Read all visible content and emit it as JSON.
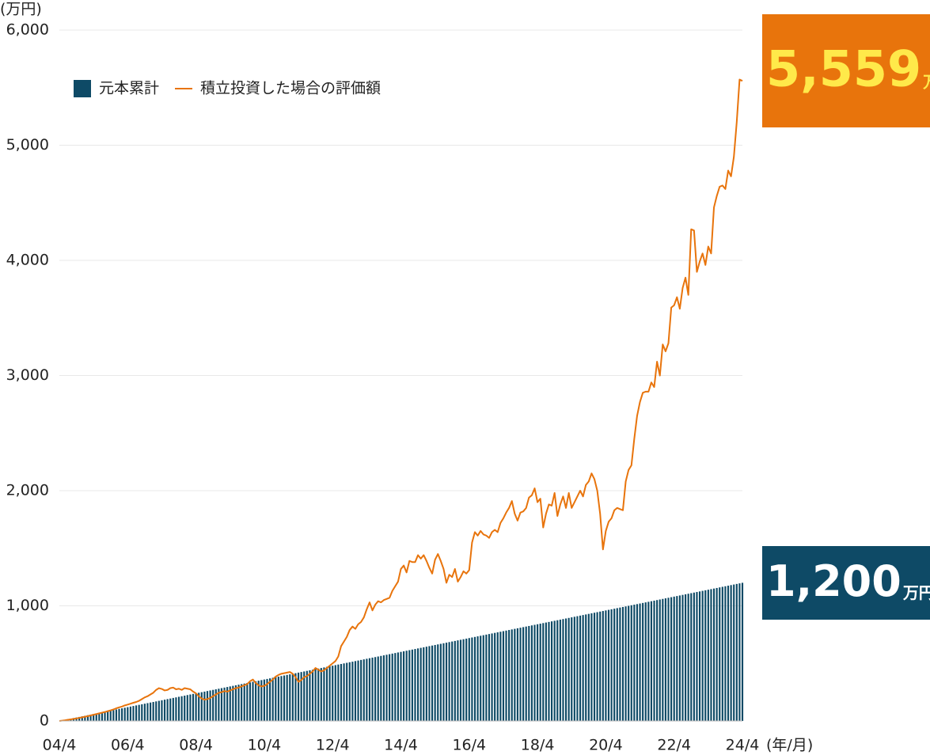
{
  "chart_data": {
    "type": "bar",
    "y_unit": "(万円)",
    "x_unit": "(年/月)",
    "categories": [
      "04/4",
      null,
      null,
      null,
      null,
      null,
      null,
      null,
      null,
      null,
      null,
      null,
      null,
      null,
      null,
      null,
      null,
      null,
      null,
      null,
      null,
      null,
      null,
      null,
      "06/4",
      null,
      null,
      null,
      null,
      null,
      null,
      null,
      null,
      null,
      null,
      null,
      null,
      null,
      null,
      null,
      null,
      null,
      null,
      null,
      null,
      null,
      null,
      null,
      "08/4",
      null,
      null,
      null,
      null,
      null,
      null,
      null,
      null,
      null,
      null,
      null,
      null,
      null,
      null,
      null,
      null,
      null,
      null,
      null,
      null,
      null,
      null,
      null,
      "10/4",
      null,
      null,
      null,
      null,
      null,
      null,
      null,
      null,
      null,
      null,
      null,
      null,
      null,
      null,
      null,
      null,
      null,
      null,
      null,
      null,
      null,
      null,
      null,
      "12/4",
      null,
      null,
      null,
      null,
      null,
      null,
      null,
      null,
      null,
      null,
      null,
      null,
      null,
      null,
      null,
      null,
      null,
      null,
      null,
      null,
      null,
      null,
      null,
      "14/4",
      null,
      null,
      null,
      null,
      null,
      null,
      null,
      null,
      null,
      null,
      null,
      null,
      null,
      null,
      null,
      null,
      null,
      null,
      null,
      null,
      null,
      null,
      null,
      "16/4",
      null,
      null,
      null,
      null,
      null,
      null,
      null,
      null,
      null,
      null,
      null,
      null,
      null,
      null,
      null,
      null,
      null,
      null,
      null,
      null,
      null,
      null,
      null,
      "18/4",
      null,
      null,
      null,
      null,
      null,
      null,
      null,
      null,
      null,
      null,
      null,
      null,
      null,
      null,
      null,
      null,
      null,
      null,
      null,
      null,
      null,
      null,
      null,
      "20/4",
      null,
      null,
      null,
      null,
      null,
      null,
      null,
      null,
      null,
      null,
      null,
      null,
      null,
      null,
      null,
      null,
      null,
      null,
      null,
      null,
      null,
      null,
      null,
      "22/4",
      null,
      null,
      null,
      null,
      null,
      null,
      null,
      null,
      null,
      null,
      null,
      null,
      null,
      null,
      null,
      null,
      null,
      null,
      null,
      null,
      null,
      null,
      null,
      "24/4"
    ],
    "series": [
      {
        "name": "元本累計",
        "type": "bar",
        "color": "#0e4a66",
        "values": [
          0,
          5,
          10,
          15,
          20,
          25,
          30,
          35,
          40,
          45,
          50,
          55,
          60,
          65,
          70,
          75,
          80,
          85,
          90,
          95,
          100,
          105,
          110,
          115,
          120,
          125,
          130,
          135,
          140,
          145,
          150,
          155,
          160,
          165,
          170,
          175,
          180,
          185,
          190,
          195,
          200,
          205,
          210,
          215,
          220,
          225,
          230,
          235,
          240,
          245,
          250,
          255,
          260,
          265,
          270,
          275,
          280,
          285,
          290,
          295,
          300,
          305,
          310,
          315,
          320,
          325,
          330,
          335,
          340,
          345,
          350,
          355,
          360,
          365,
          370,
          375,
          380,
          385,
          390,
          395,
          400,
          405,
          410,
          415,
          420,
          425,
          430,
          435,
          440,
          445,
          450,
          455,
          460,
          465,
          470,
          475,
          480,
          485,
          490,
          495,
          500,
          505,
          510,
          515,
          520,
          525,
          530,
          535,
          540,
          545,
          550,
          555,
          560,
          565,
          570,
          575,
          580,
          585,
          590,
          595,
          600,
          605,
          610,
          615,
          620,
          625,
          630,
          635,
          640,
          645,
          650,
          655,
          660,
          665,
          670,
          675,
          680,
          685,
          690,
          695,
          700,
          705,
          710,
          715,
          720,
          725,
          730,
          735,
          740,
          745,
          750,
          755,
          760,
          765,
          770,
          775,
          780,
          785,
          790,
          795,
          800,
          805,
          810,
          815,
          820,
          825,
          830,
          835,
          840,
          845,
          850,
          855,
          860,
          865,
          870,
          875,
          880,
          885,
          890,
          895,
          900,
          905,
          910,
          915,
          920,
          925,
          930,
          935,
          940,
          945,
          950,
          955,
          960,
          965,
          970,
          975,
          980,
          985,
          990,
          995,
          1000,
          1005,
          1010,
          1015,
          1020,
          1025,
          1030,
          1035,
          1040,
          1045,
          1050,
          1055,
          1060,
          1065,
          1070,
          1075,
          1080,
          1085,
          1090,
          1095,
          1100,
          1105,
          1110,
          1115,
          1120,
          1125,
          1130,
          1135,
          1140,
          1145,
          1150,
          1155,
          1160,
          1165,
          1170,
          1175,
          1180,
          1185,
          1190,
          1195,
          1200
        ]
      },
      {
        "name": "積立投資した場合の評価額",
        "type": "line",
        "color": "#e8740c",
        "values": [
          0,
          3,
          6,
          10,
          14,
          18,
          22,
          27,
          32,
          37,
          42,
          48,
          54,
          60,
          66,
          72,
          78,
          85,
          92,
          100,
          110,
          118,
          125,
          135,
          142,
          150,
          158,
          165,
          175,
          190,
          205,
          215,
          230,
          245,
          270,
          285,
          278,
          265,
          270,
          285,
          290,
          275,
          280,
          270,
          285,
          280,
          275,
          255,
          240,
          215,
          195,
          185,
          190,
          200,
          215,
          230,
          245,
          250,
          260,
          255,
          265,
          275,
          285,
          290,
          300,
          310,
          320,
          345,
          360,
          330,
          310,
          300,
          305,
          320,
          340,
          360,
          385,
          400,
          410,
          415,
          420,
          425,
          410,
          380,
          340,
          355,
          380,
          390,
          410,
          430,
          460,
          445,
          430,
          440,
          460,
          480,
          500,
          520,
          560,
          650,
          690,
          730,
          790,
          820,
          800,
          840,
          860,
          900,
          970,
          1030,
          960,
          1010,
          1040,
          1030,
          1050,
          1060,
          1070,
          1130,
          1170,
          1210,
          1320,
          1350,
          1290,
          1390,
          1380,
          1380,
          1440,
          1410,
          1440,
          1390,
          1330,
          1280,
          1400,
          1450,
          1390,
          1320,
          1200,
          1270,
          1250,
          1320,
          1210,
          1250,
          1300,
          1280,
          1310,
          1550,
          1640,
          1610,
          1650,
          1620,
          1610,
          1590,
          1640,
          1660,
          1640,
          1720,
          1760,
          1810,
          1850,
          1910,
          1800,
          1740,
          1810,
          1820,
          1850,
          1940,
          1960,
          2020,
          1900,
          1930,
          1680,
          1800,
          1880,
          1870,
          1980,
          1780,
          1880,
          1950,
          1850,
          1980,
          1850,
          1900,
          1950,
          2000,
          1950,
          2050,
          2080,
          2150,
          2100,
          2000,
          1800,
          1490,
          1650,
          1730,
          1760,
          1830,
          1850,
          1840,
          1830,
          2080,
          2180,
          2220,
          2450,
          2650,
          2770,
          2850,
          2860,
          2860,
          2940,
          2900,
          3120,
          3000,
          3270,
          3210,
          3280,
          3590,
          3610,
          3680,
          3580,
          3760,
          3850,
          3700,
          4270,
          4260,
          3900,
          3990,
          4060,
          3960,
          4120,
          4060,
          4460,
          4560,
          4640,
          4650,
          4620,
          4780,
          4730,
          4900,
          5200,
          5570,
          5559
        ]
      }
    ],
    "ylim": [
      0,
      6000
    ],
    "yticks": [
      0,
      {
        "value": 1000,
        "label": "1,000"
      },
      {
        "value": 2000,
        "label": "2,000"
      },
      {
        "value": 3000,
        "label": "3,000"
      },
      {
        "value": 4000,
        "label": "4,000"
      },
      {
        "value": 5000,
        "label": "5,000"
      },
      {
        "value": 6000,
        "label": "6,000"
      }
    ],
    "grid": true,
    "legend": "top-left",
    "annotations": [
      {
        "text": "5,559",
        "unit": "万円",
        "box_color": "#e8740c",
        "text_color": "#ffe94a"
      },
      {
        "text": "1,200",
        "unit": "万円",
        "box_color": "#0e4a66",
        "text_color": "#ffffff"
      }
    ]
  }
}
